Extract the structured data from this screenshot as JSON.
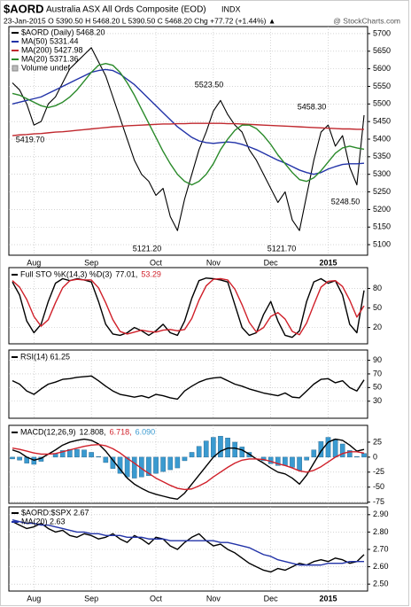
{
  "header": {
    "symbol": "$AORD",
    "name": "Australia ASX All Ords Composite (EOD)",
    "exchange": "INDX",
    "quote": "23-Jan-2015  O 5390.50  H 5468.20  L 5390.50  C 5468.20  Chg +77.72 (+1.44%) ▲",
    "watermark": "@ StockCharts.com"
  },
  "chart_data": [
    {
      "type": "line",
      "categories": [
        null,
        null,
        null,
        "Aug",
        null,
        null,
        null,
        null,
        null,
        null,
        null,
        "Sep",
        null,
        null,
        null,
        null,
        null,
        null,
        null,
        null,
        "Oct",
        null,
        null,
        null,
        null,
        null,
        null,
        null,
        "Nov",
        null,
        null,
        null,
        null,
        null,
        null,
        null,
        "Dec",
        null,
        null,
        null,
        null,
        null,
        null,
        null,
        "2015",
        null,
        null,
        null,
        null,
        null
      ],
      "ylim": [
        5070,
        5720
      ],
      "yticks": [
        5100,
        5150,
        5200,
        5250,
        5300,
        5350,
        5400,
        5450,
        5500,
        5550,
        5600,
        5650,
        5700
      ],
      "grid": true,
      "series": [
        {
          "name": "$AORD (Daily) 5468.20",
          "color": "#000000",
          "values": [
            5560,
            5540,
            5500,
            5440,
            5450,
            5500,
            5520,
            5560,
            5600,
            5620,
            5640,
            5660,
            5620,
            5580,
            5520,
            5460,
            5400,
            5340,
            5300,
            5280,
            5240,
            5260,
            5180,
            5140,
            5230,
            5300,
            5370,
            5420,
            5480,
            5510,
            5470,
            5440,
            5420,
            5370,
            5340,
            5300,
            5260,
            5220,
            5250,
            5170,
            5140,
            5240,
            5340,
            5420,
            5440,
            5380,
            5410,
            5320,
            5270,
            5468.2
          ]
        },
        {
          "name": "MA(50) 5331.44",
          "color": "#2233a8",
          "values": [
            5500,
            5505,
            5510,
            5515,
            5520,
            5530,
            5540,
            5550,
            5560,
            5570,
            5580,
            5590,
            5595,
            5598,
            5595,
            5585,
            5570,
            5555,
            5535,
            5515,
            5495,
            5475,
            5455,
            5435,
            5420,
            5405,
            5395,
            5390,
            5388,
            5390,
            5392,
            5390,
            5385,
            5378,
            5370,
            5360,
            5350,
            5340,
            5332,
            5322,
            5312,
            5305,
            5300,
            5305,
            5315,
            5322,
            5328,
            5330,
            5330,
            5331.44
          ]
        },
        {
          "name": "MA(200) 5427.98",
          "color": "#c0282e",
          "values": [
            5410,
            5412,
            5413,
            5415,
            5416,
            5418,
            5420,
            5421,
            5423,
            5425,
            5427,
            5429,
            5431,
            5433,
            5435,
            5436,
            5438,
            5439,
            5440,
            5441,
            5442,
            5443,
            5443,
            5444,
            5444,
            5445,
            5445,
            5445,
            5445,
            5445,
            5444,
            5444,
            5443,
            5442,
            5441,
            5440,
            5439,
            5438,
            5437,
            5436,
            5435,
            5434,
            5433,
            5432,
            5431,
            5430,
            5429,
            5429,
            5428,
            5427.98
          ]
        },
        {
          "name": "MA(20) 5371.36",
          "color": "#2a8a2a",
          "values": [
            5530,
            5525,
            5515,
            5505,
            5495,
            5490,
            5495,
            5505,
            5520,
            5540,
            5565,
            5590,
            5610,
            5615,
            5610,
            5590,
            5560,
            5525,
            5485,
            5445,
            5405,
            5365,
            5330,
            5300,
            5280,
            5270,
            5280,
            5300,
            5330,
            5370,
            5400,
            5425,
            5440,
            5440,
            5430,
            5410,
            5385,
            5355,
            5330,
            5305,
            5285,
            5280,
            5290,
            5310,
            5335,
            5360,
            5375,
            5380,
            5375,
            5371.36
          ]
        }
      ],
      "volume_label": "Volume undef",
      "annotations": [
        "5419.70",
        "5523.50",
        "5458.30",
        "5121.20",
        "5121.70",
        "5248.50"
      ]
    },
    {
      "type": "line",
      "title": "Full STO %K(14,3) %D(3)",
      "ylim": [
        -5,
        112
      ],
      "yticks": [
        20,
        50,
        80
      ],
      "grid": true,
      "series": [
        {
          "name": "77.01,",
          "color": "#000000",
          "values": [
            90,
            70,
            30,
            12,
            25,
            60,
            88,
            95,
            92,
            95,
            93,
            90,
            60,
            25,
            10,
            8,
            12,
            20,
            15,
            8,
            15,
            25,
            12,
            8,
            30,
            65,
            92,
            96,
            95,
            93,
            90,
            55,
            20,
            8,
            12,
            40,
            60,
            30,
            8,
            5,
            15,
            60,
            90,
            95,
            88,
            92,
            70,
            25,
            12,
            77.01
          ]
        },
        {
          "name": "53.29",
          "color": "#d0202a",
          "values": [
            92,
            82,
            63,
            37,
            22,
            32,
            58,
            81,
            92,
            94,
            93,
            93,
            81,
            58,
            32,
            14,
            10,
            13,
            16,
            14,
            13,
            16,
            17,
            15,
            17,
            34,
            62,
            84,
            94,
            95,
            93,
            79,
            55,
            28,
            13,
            20,
            37,
            43,
            33,
            14,
            9,
            27,
            55,
            82,
            91,
            92,
            83,
            62,
            36,
            53.29
          ]
        }
      ]
    },
    {
      "type": "line",
      "title": "RSI(14) 61.25",
      "ylim": [
        5,
        105
      ],
      "yticks": [
        30,
        50,
        70,
        90
      ],
      "grid": true,
      "series": [
        {
          "color": "#000000",
          "values": [
            60,
            55,
            45,
            40,
            48,
            55,
            58,
            62,
            63,
            65,
            66,
            67,
            60,
            52,
            45,
            40,
            38,
            36,
            38,
            35,
            40,
            38,
            35,
            33,
            45,
            52,
            58,
            62,
            64,
            65,
            60,
            55,
            52,
            48,
            45,
            42,
            40,
            38,
            42,
            36,
            35,
            45,
            55,
            62,
            63,
            57,
            60,
            50,
            45,
            61.25
          ]
        }
      ]
    },
    {
      "type": "line",
      "title": "MACD(12,26,9)",
      "ylim": [
        -77,
        53
      ],
      "yticks": [
        -75,
        -50,
        -25,
        0,
        25
      ],
      "grid": true,
      "series": [
        {
          "name": "6.090",
          "type": "bar",
          "color": "#3a9ad0",
          "values": [
            -3,
            -5,
            -10,
            -12,
            -7,
            0,
            6,
            11,
            13,
            13,
            12,
            8,
            1,
            -9,
            -19,
            -27,
            -33,
            -35,
            -33,
            -31,
            -27,
            -24,
            -21,
            -18,
            -6,
            8,
            18,
            27,
            33,
            35,
            32,
            25,
            17,
            8,
            0,
            -6,
            -11,
            -14,
            -14,
            -17,
            -22,
            -5,
            12,
            26,
            33,
            30,
            22,
            11,
            1,
            6.09
          ]
        },
        {
          "name": "12.808,",
          "color": "#000000",
          "values": [
            12,
            8,
            0,
            -5,
            -2,
            5,
            12,
            20,
            25,
            28,
            30,
            28,
            22,
            10,
            -5,
            -20,
            -35,
            -45,
            -52,
            -58,
            -62,
            -65,
            -68,
            -70,
            -60,
            -45,
            -30,
            -15,
            0,
            10,
            15,
            15,
            12,
            5,
            -3,
            -10,
            -18,
            -25,
            -28,
            -35,
            -45,
            -30,
            -10,
            10,
            25,
            30,
            28,
            20,
            10,
            12.808
          ]
        },
        {
          "name": "6.718,",
          "color": "#d0202a",
          "values": [
            15,
            13,
            10,
            7,
            5,
            5,
            6,
            9,
            12,
            15,
            18,
            20,
            21,
            19,
            14,
            7,
            -2,
            -10,
            -19,
            -27,
            -35,
            -41,
            -47,
            -52,
            -54,
            -53,
            -48,
            -42,
            -33,
            -25,
            -17,
            -10,
            -5,
            -3,
            -3,
            -4,
            -7,
            -11,
            -14,
            -18,
            -23,
            -25,
            -22,
            -16,
            -8,
            0,
            6,
            9,
            9,
            6.718
          ]
        }
      ]
    },
    {
      "type": "line",
      "categories": [
        null,
        null,
        null,
        "Aug",
        null,
        null,
        null,
        null,
        null,
        null,
        null,
        "Sep",
        null,
        null,
        null,
        null,
        null,
        null,
        null,
        null,
        "Oct",
        null,
        null,
        null,
        null,
        null,
        null,
        null,
        "Nov",
        null,
        null,
        null,
        null,
        null,
        null,
        null,
        "Dec",
        null,
        null,
        null,
        null,
        null,
        null,
        null,
        "2015",
        null,
        null,
        null,
        null,
        null
      ],
      "ylim": [
        2.46,
        2.945
      ],
      "yticks": [
        {
          "value": 2.5,
          "label": "2.50"
        },
        {
          "value": 2.6,
          "label": "2.60"
        },
        {
          "value": 2.7,
          "label": "2.70"
        },
        {
          "value": 2.8,
          "label": "2.80"
        },
        {
          "value": 2.9,
          "label": "2.90"
        }
      ],
      "grid": true,
      "series": [
        {
          "name": "$AORD:$SPX 2.67",
          "color": "#000000",
          "values": [
            2.86,
            2.84,
            2.82,
            2.83,
            2.85,
            2.82,
            2.8,
            2.81,
            2.78,
            2.77,
            2.79,
            2.78,
            2.76,
            2.77,
            2.79,
            2.76,
            2.74,
            2.78,
            2.76,
            2.73,
            2.77,
            2.76,
            2.72,
            2.7,
            2.74,
            2.77,
            2.79,
            2.75,
            2.72,
            2.73,
            2.7,
            2.68,
            2.65,
            2.62,
            2.6,
            2.58,
            2.57,
            2.59,
            2.58,
            2.6,
            2.62,
            2.61,
            2.63,
            2.64,
            2.63,
            2.65,
            2.64,
            2.62,
            2.63,
            2.67
          ]
        },
        {
          "name": "MA(20) 2.63",
          "color": "#2233a8",
          "values": [
            2.87,
            2.86,
            2.85,
            2.85,
            2.84,
            2.84,
            2.83,
            2.82,
            2.81,
            2.8,
            2.8,
            2.79,
            2.79,
            2.78,
            2.78,
            2.78,
            2.77,
            2.77,
            2.77,
            2.76,
            2.76,
            2.76,
            2.75,
            2.75,
            2.75,
            2.75,
            2.75,
            2.75,
            2.75,
            2.74,
            2.74,
            2.73,
            2.72,
            2.71,
            2.69,
            2.67,
            2.66,
            2.64,
            2.63,
            2.62,
            2.61,
            2.61,
            2.61,
            2.61,
            2.62,
            2.62,
            2.62,
            2.63,
            2.63,
            2.63
          ]
        }
      ]
    }
  ]
}
